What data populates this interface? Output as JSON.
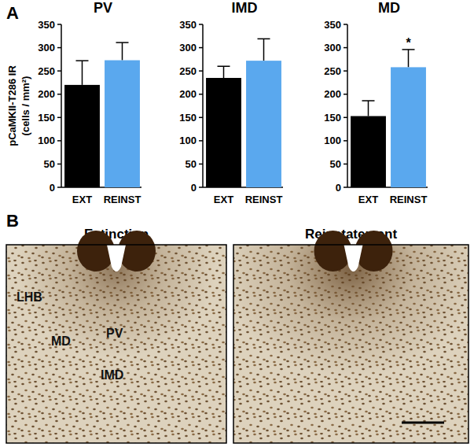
{
  "panel_a": {
    "label": "A"
  },
  "chart_data": [
    {
      "type": "bar",
      "title": "PV",
      "categories": [
        "EXT",
        "REINST"
      ],
      "values": [
        220,
        273
      ],
      "errors": [
        52,
        38
      ],
      "colors": [
        "#000000",
        "#5aa8ee"
      ],
      "ylim": [
        0,
        350
      ],
      "yticks": [
        0,
        50,
        100,
        150,
        200,
        250,
        300,
        350
      ],
      "ylabel": [
        "pCaMKII-T286 IR",
        "(cells / mm²)"
      ]
    },
    {
      "type": "bar",
      "title": "IMD",
      "categories": [
        "EXT",
        "REINST"
      ],
      "values": [
        235,
        272
      ],
      "errors": [
        25,
        47
      ],
      "colors": [
        "#000000",
        "#5aa8ee"
      ],
      "ylim": [
        0,
        350
      ],
      "yticks": [
        0,
        50,
        100,
        150,
        200,
        250,
        300,
        350
      ]
    },
    {
      "type": "bar",
      "title": "MD",
      "categories": [
        "EXT",
        "REINST"
      ],
      "values": [
        153,
        258
      ],
      "errors": [
        33,
        38
      ],
      "colors": [
        "#000000",
        "#5aa8ee"
      ],
      "ylim": [
        0,
        350
      ],
      "yticks": [
        0,
        50,
        100,
        150,
        200,
        250,
        300,
        350
      ],
      "annotations": [
        {
          "text": "*",
          "category": "REINST"
        }
      ]
    }
  ],
  "panel_b": {
    "label": "B",
    "panels": [
      {
        "title": "Extinction",
        "regions": [
          "LHB",
          "MD",
          "PV",
          "IMD"
        ]
      },
      {
        "title": "Reinstatement",
        "regions": []
      }
    ]
  }
}
